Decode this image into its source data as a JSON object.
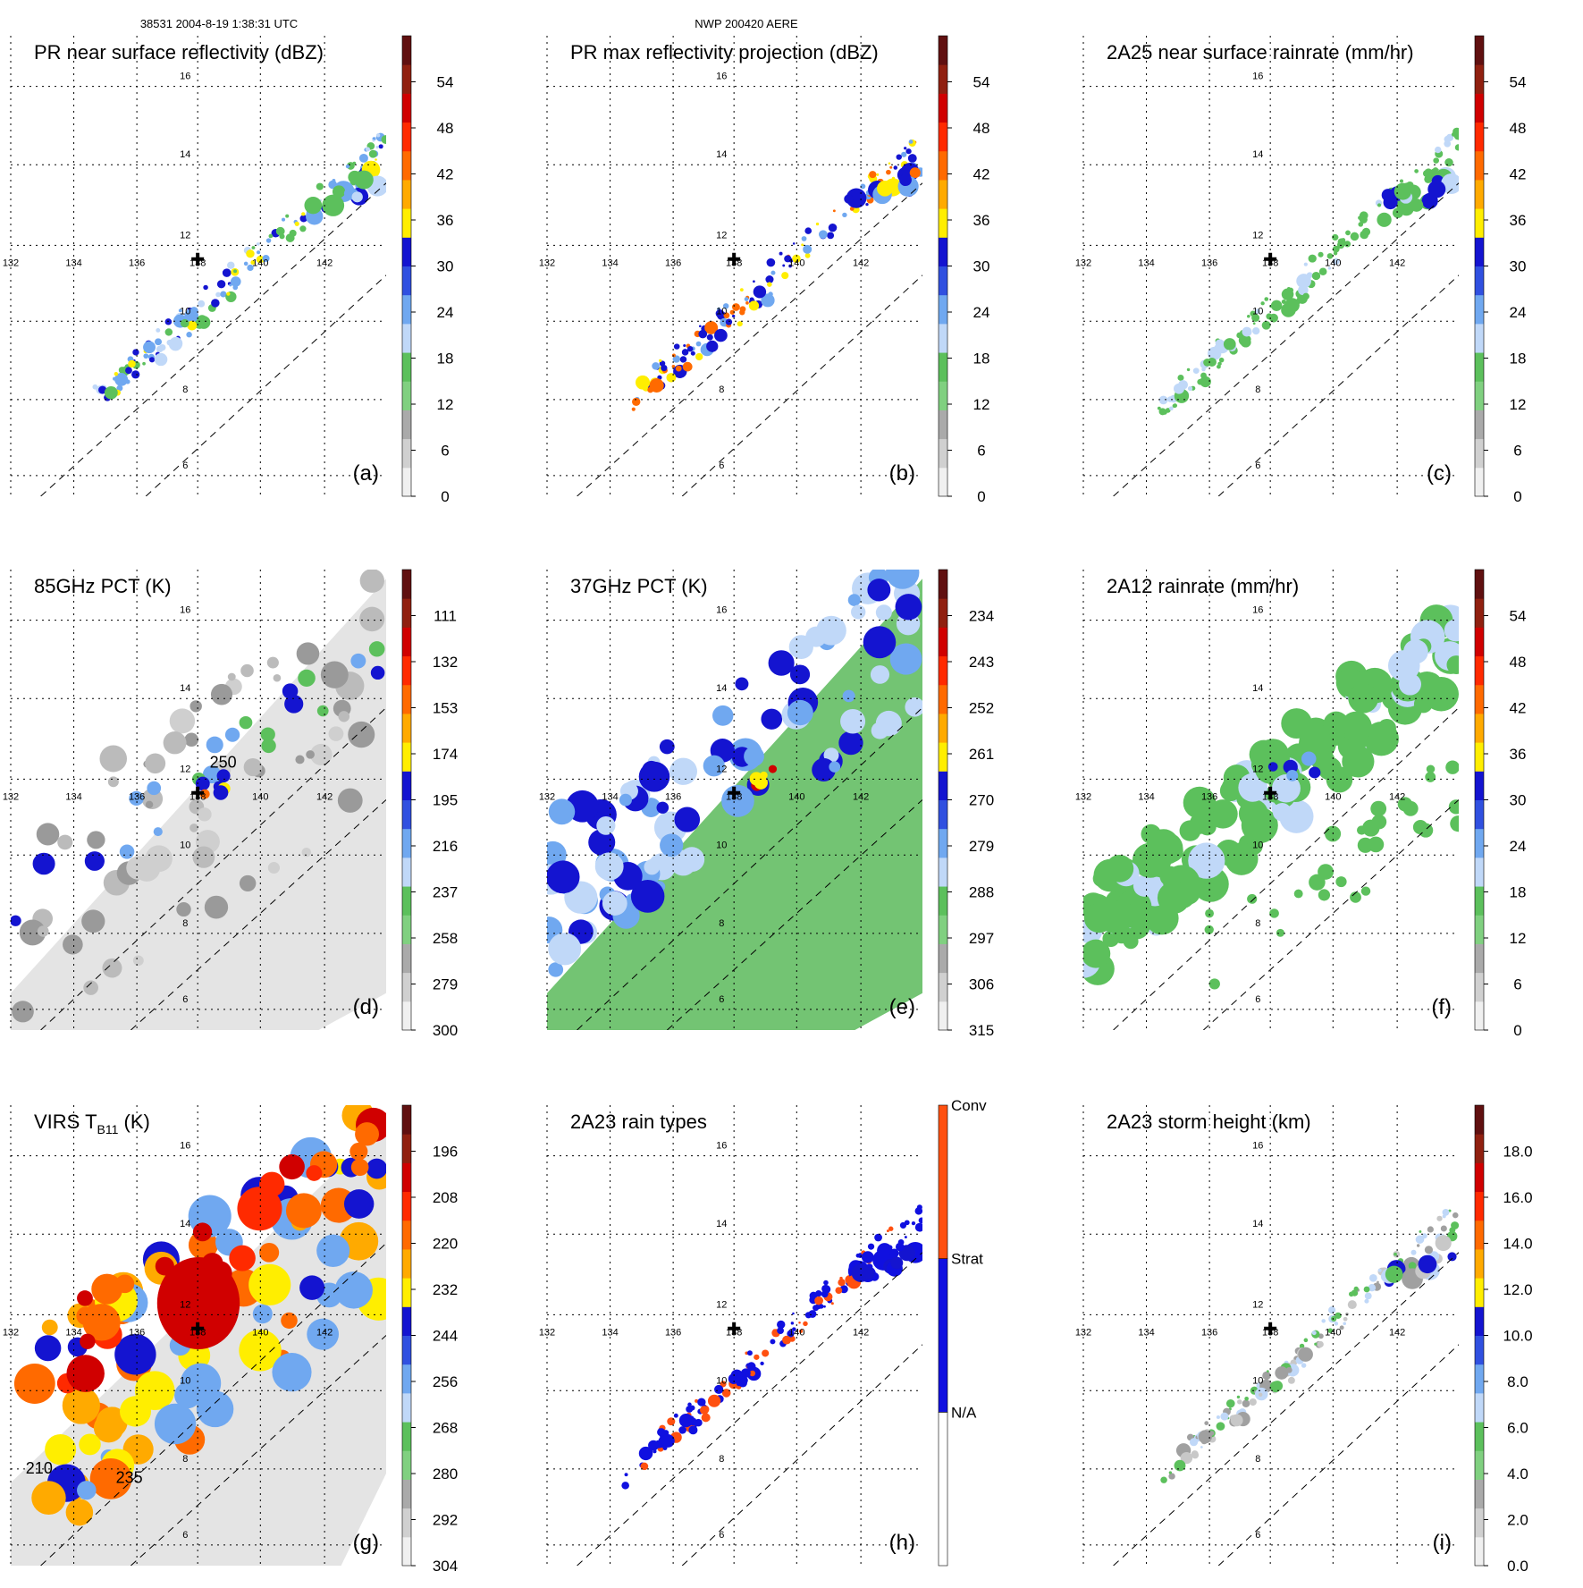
{
  "header": {
    "orbit_info": "38531 2004-8-19 1:38:31 UTC",
    "case_id": "NWP 200420 AERE"
  },
  "colors": {
    "ramp": [
      "#f0f0f0",
      "#d0d0d0",
      "#aaaaaa",
      "#80d080",
      "#5cc05c",
      "#c0d8f8",
      "#70a8f0",
      "#3050e0",
      "#1414d0",
      "#ffee00",
      "#ffaa00",
      "#ff6a00",
      "#ff2a00",
      "#d00000",
      "#902010",
      "#601010"
    ],
    "raintype": [
      "#ffffff",
      "#1010e0",
      "#ff5010"
    ],
    "gridline": "#000000",
    "gray_bg": "#e4e4e4",
    "green_bg": "#73c473",
    "blue": "#2040e0",
    "orange": "#ff6a00",
    "red": "#d02000",
    "yellow": "#ffe000"
  },
  "chart_data": [
    {
      "panel": "a",
      "type": "heatmap",
      "title": "PR near surface reflectivity (dBZ)",
      "lon_ticks": [
        "132",
        "134",
        "136",
        "138",
        "140",
        "142"
      ],
      "lat_ticks": [
        "6",
        "8",
        "10",
        "12",
        "14",
        "16"
      ],
      "colorbar": {
        "type": "continuous",
        "ticks": [
          "0",
          "6",
          "12",
          "18",
          "24",
          "30",
          "36",
          "42",
          "48",
          "54"
        ],
        "range": [
          0,
          60
        ]
      },
      "swath": "pr",
      "center_marker": {
        "lon": 137.9,
        "lat": 11.0
      }
    },
    {
      "panel": "b",
      "type": "heatmap",
      "title": "PR max reflectivity projection (dBZ)",
      "lon_ticks": [
        "132",
        "134",
        "136",
        "138",
        "140",
        "142"
      ],
      "lat_ticks": [
        "6",
        "8",
        "10",
        "12",
        "14",
        "16"
      ],
      "colorbar": {
        "type": "continuous",
        "ticks": [
          "0",
          "6",
          "12",
          "18",
          "24",
          "30",
          "36",
          "42",
          "48",
          "54"
        ],
        "range": [
          0,
          60
        ]
      },
      "swath": "pr",
      "center_marker": {
        "lon": 137.9,
        "lat": 11.0
      }
    },
    {
      "panel": "c",
      "type": "heatmap",
      "title": "2A25 near surface rainrate (mm/hr)",
      "lon_ticks": [
        "132",
        "134",
        "136",
        "138",
        "140",
        "142"
      ],
      "lat_ticks": [
        "6",
        "8",
        "10",
        "12",
        "14",
        "16"
      ],
      "colorbar": {
        "type": "continuous",
        "ticks": [
          "0",
          "6",
          "12",
          "18",
          "24",
          "30",
          "36",
          "42",
          "48",
          "54"
        ],
        "range": [
          0,
          60
        ]
      },
      "swath": "pr",
      "center_marker": {
        "lon": 137.9,
        "lat": 11.0
      }
    },
    {
      "panel": "d",
      "type": "heatmap",
      "title": "85GHz PCT (K)",
      "lon_ticks": [
        "132",
        "134",
        "136",
        "138",
        "140",
        "142"
      ],
      "lat_ticks": [
        "6",
        "8",
        "10",
        "12",
        "14",
        "16"
      ],
      "colorbar": {
        "type": "continuous",
        "ticks": [
          "300",
          "279",
          "258",
          "237",
          "216",
          "195",
          "174",
          "153",
          "132",
          "111"
        ],
        "range": [
          300,
          90
        ]
      },
      "swath": "tmi",
      "contour_label": "250",
      "center_marker": {
        "lon": 137.9,
        "lat": 11.0
      }
    },
    {
      "panel": "e",
      "type": "heatmap",
      "title": "37GHz PCT (K)",
      "lon_ticks": [
        "132",
        "134",
        "136",
        "138",
        "140",
        "142"
      ],
      "lat_ticks": [
        "6",
        "8",
        "10",
        "12",
        "14",
        "16"
      ],
      "colorbar": {
        "type": "continuous",
        "ticks": [
          "315",
          "306",
          "297",
          "288",
          "279",
          "270",
          "261",
          "252",
          "243",
          "234"
        ],
        "range": [
          315,
          225
        ]
      },
      "swath": "tmi",
      "center_marker": {
        "lon": 137.9,
        "lat": 11.0
      }
    },
    {
      "panel": "f",
      "type": "heatmap",
      "title": "2A12 rainrate (mm/hr)",
      "lon_ticks": [
        "132",
        "134",
        "136",
        "138",
        "140",
        "142"
      ],
      "lat_ticks": [
        "6",
        "8",
        "10",
        "12",
        "14",
        "16"
      ],
      "colorbar": {
        "type": "continuous",
        "ticks": [
          "0",
          "6",
          "12",
          "18",
          "24",
          "30",
          "36",
          "42",
          "48",
          "54"
        ],
        "range": [
          0,
          60
        ]
      },
      "swath": "tmi",
      "center_marker": {
        "lon": 137.9,
        "lat": 11.0
      }
    },
    {
      "panel": "g",
      "type": "heatmap",
      "title": "VIRS T",
      "title_subscript": "B11",
      "title_suffix": " (K)",
      "lon_ticks": [
        "132",
        "134",
        "136",
        "138",
        "140",
        "142"
      ],
      "lat_ticks": [
        "6",
        "8",
        "10",
        "12",
        "14",
        "16"
      ],
      "colorbar": {
        "type": "continuous",
        "ticks": [
          "304",
          "292",
          "280",
          "268",
          "256",
          "244",
          "232",
          "220",
          "208",
          "196"
        ],
        "range": [
          304,
          184
        ]
      },
      "swath": "virs",
      "contour_labels": [
        "210",
        "235"
      ],
      "center_marker": {
        "lon": 137.9,
        "lat": 11.0
      }
    },
    {
      "panel": "h",
      "type": "heatmap",
      "title": "2A23 rain types",
      "lon_ticks": [
        "132",
        "134",
        "136",
        "138",
        "140",
        "142"
      ],
      "lat_ticks": [
        "6",
        "8",
        "10",
        "12",
        "14",
        "16"
      ],
      "colorbar": {
        "type": "categorical",
        "categories": [
          "N/A",
          "Strat",
          "Conv"
        ]
      },
      "swath": "pr",
      "center_marker": {
        "lon": 137.9,
        "lat": 11.0
      }
    },
    {
      "panel": "i",
      "type": "heatmap",
      "title": "2A23 storm height (km)",
      "lon_ticks": [
        "132",
        "134",
        "136",
        "138",
        "140",
        "142"
      ],
      "lat_ticks": [
        "6",
        "8",
        "10",
        "12",
        "14",
        "16"
      ],
      "colorbar": {
        "type": "continuous",
        "ticks": [
          "0.0",
          "2.0",
          "4.0",
          "6.0",
          "8.0",
          "10.0",
          "12.0",
          "14.0",
          "16.0",
          "18.0"
        ],
        "range": [
          0,
          20
        ]
      },
      "swath": "pr",
      "center_marker": {
        "lon": 137.9,
        "lat": 11.0
      }
    }
  ]
}
